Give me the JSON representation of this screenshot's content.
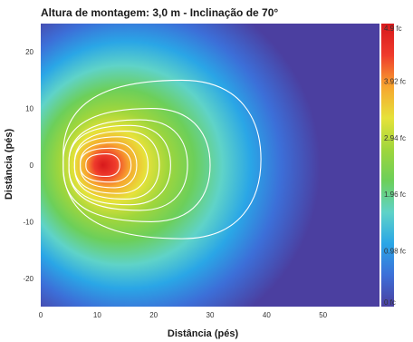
{
  "chart_data": {
    "type": "heatmap",
    "title": "Altura de montagem: 3,0 m - Inclinação de 70°",
    "xlabel": "Distância (pés)",
    "ylabel": "Distância (pés)",
    "xlim": [
      0,
      60
    ],
    "ylim": [
      -25,
      25
    ],
    "x_ticks": [
      0,
      10,
      20,
      30,
      40,
      50
    ],
    "x_tick_labels": [
      "0",
      "10",
      "20",
      "30",
      "40",
      "50"
    ],
    "y_ticks": [
      20,
      10,
      0,
      -10,
      -20
    ],
    "y_tick_labels": [
      "20",
      "10",
      "0",
      "-10",
      "-20"
    ],
    "colorbar": {
      "min": 0,
      "max": 4.9,
      "ticks": [
        4.9,
        3.92,
        2.94,
        1.96,
        0.98,
        0
      ],
      "tick_labels": [
        "4.9 fc",
        "3.92 fc",
        "2.94 fc",
        "1.96 fc",
        "0.98 fc",
        "0 fc"
      ],
      "unit": "fc"
    },
    "peak": {
      "x": 11,
      "y": 0,
      "value": 4.9
    },
    "contours": [
      {
        "level_index": 1,
        "x_range": [
          4,
          39
        ],
        "y_range": [
          -13,
          15
        ]
      },
      {
        "level_index": 2,
        "x_range": [
          4,
          30
        ],
        "y_range": [
          -10,
          10
        ]
      },
      {
        "level_index": 3,
        "x_range": [
          5,
          26
        ],
        "y_range": [
          -8,
          8
        ]
      },
      {
        "level_index": 4,
        "x_range": [
          5,
          23
        ],
        "y_range": [
          -7,
          7
        ]
      },
      {
        "level_index": 5,
        "x_range": [
          6,
          21
        ],
        "y_range": [
          -6,
          6
        ]
      },
      {
        "level_index": 6,
        "x_range": [
          6,
          19
        ],
        "y_range": [
          -5,
          5
        ]
      },
      {
        "level_index": 7,
        "x_range": [
          7,
          17
        ],
        "y_range": [
          -4,
          4
        ]
      },
      {
        "level_index": 8,
        "x_range": [
          7,
          16
        ],
        "y_range": [
          -3,
          3
        ]
      },
      {
        "level_index": 9,
        "x_range": [
          8,
          14
        ],
        "y_range": [
          -2,
          2
        ]
      }
    ],
    "colormap": [
      "#4b3fa0",
      "#3c6fd8",
      "#2aa6e6",
      "#5fd3c8",
      "#6ccf5a",
      "#9fd63c",
      "#e6e23a",
      "#f7a52f",
      "#ef3b2c",
      "#d7191c"
    ]
  }
}
